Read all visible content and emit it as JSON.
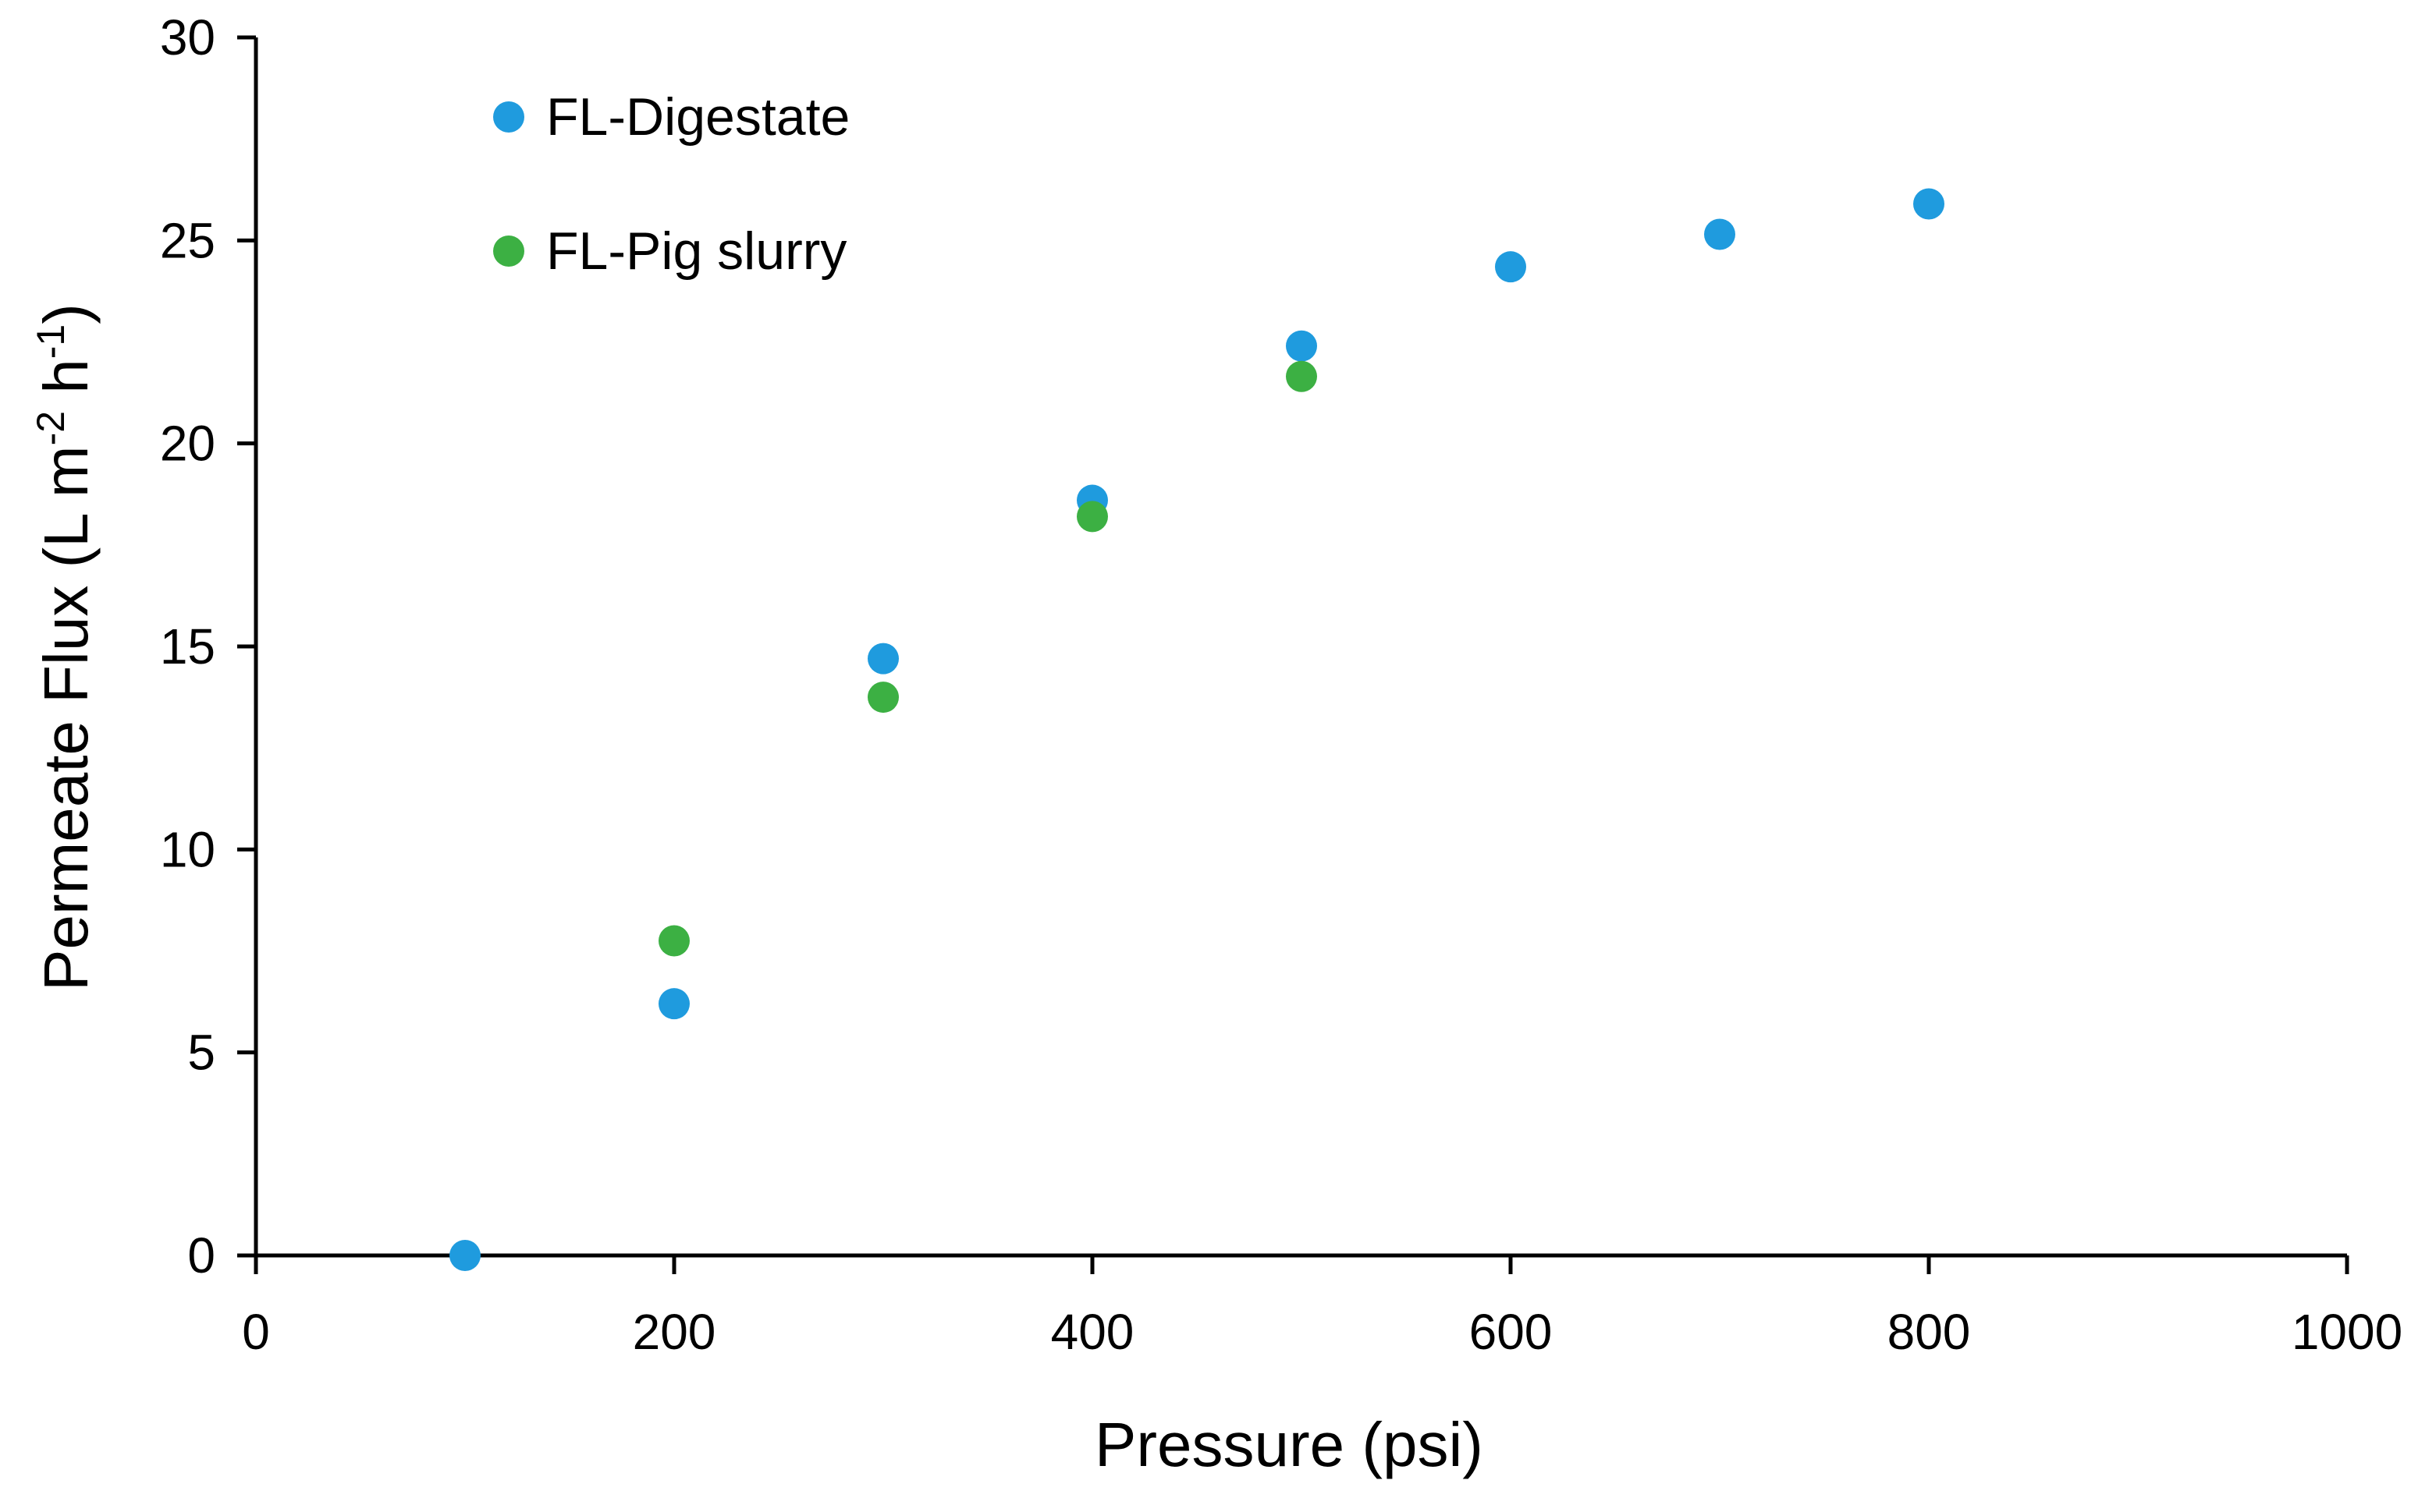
{
  "chart_data": {
    "type": "scatter",
    "title": "",
    "xlabel": "Pressure (psi)",
    "ylabel_main": "Permeate Flux (L m",
    "ylabel_sup1": "-2",
    "ylabel_mid": " h",
    "ylabel_sup2": "-1",
    "ylabel_end": ")",
    "xlim": [
      0,
      1000
    ],
    "ylim": [
      0,
      30
    ],
    "xticks": [
      "0",
      "200",
      "400",
      "600",
      "800",
      "1000"
    ],
    "yticks": [
      "0",
      "5",
      "10",
      "15",
      "20",
      "25",
      "30"
    ],
    "grid": false,
    "legend_position": "top-left",
    "series": [
      {
        "name": "FL-Digestate",
        "color": "#1F9BDE",
        "x": [
          100,
          200,
          300,
          400,
          500,
          600,
          700,
          800
        ],
        "y": [
          0,
          6.2,
          14.7,
          18.6,
          22.4,
          24.35,
          25.15,
          25.9
        ]
      },
      {
        "name": "FL-Pig slurry",
        "color": "#3CB043",
        "x": [
          200,
          300,
          400,
          500
        ],
        "y": [
          7.75,
          13.75,
          18.2,
          21.65
        ]
      }
    ]
  }
}
